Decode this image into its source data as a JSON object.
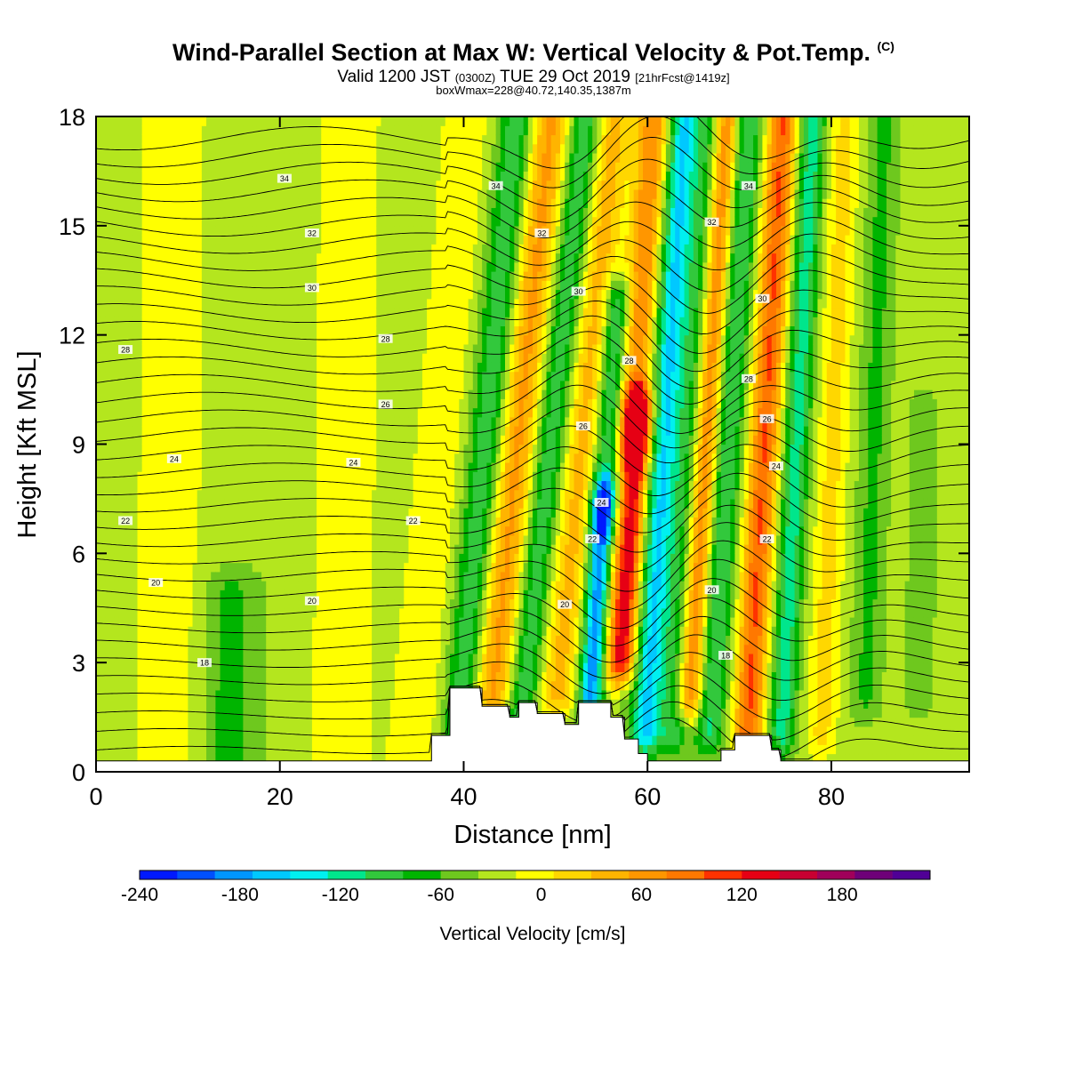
{
  "header": {
    "title_main": "Wind-Parallel Section at Max W: Vertical Velocity & Pot.Temp.",
    "title_suffix": "(C)",
    "valid_prefix": "Valid 1200 JST",
    "valid_utc": "(0300Z)",
    "valid_date": "TUE 29 Oct 2019",
    "valid_fcst": "[21hrFcst@1419z]",
    "boxwmax": "boxWmax=228@40.72,140.35,1387m"
  },
  "chart_data": {
    "type": "heatmap",
    "title": "Wind-Parallel Section at Max W: Vertical Velocity & Pot.Temp.",
    "xlabel": "Distance [nm]",
    "ylabel": "Height [Kft MSL]",
    "xlim": [
      0,
      95
    ],
    "ylim": [
      0,
      18
    ],
    "xticks": [
      0,
      20,
      40,
      60,
      80
    ],
    "yticks": [
      0,
      3,
      6,
      9,
      12,
      15,
      18
    ],
    "colorbar": {
      "label": "Vertical Velocity [cm/s]",
      "ticks": [
        -240,
        -180,
        -120,
        -60,
        0,
        60,
        120,
        180
      ],
      "levels": [
        -240,
        -210,
        -180,
        -150,
        -120,
        -90,
        -60,
        -30,
        0,
        30,
        60,
        90,
        120,
        150,
        180,
        210
      ],
      "colors": [
        "#0019ff",
        "#0050ff",
        "#0096ff",
        "#00c8ff",
        "#00f0f0",
        "#00e68c",
        "#32c83c",
        "#00b400",
        "#6ec81e",
        "#b4e61e",
        "#ffff00",
        "#ffd700",
        "#ffb400",
        "#ff9600",
        "#ff7800",
        "#ff3200",
        "#e60014",
        "#c80032",
        "#a0005a",
        "#6e0078",
        "#500096"
      ]
    },
    "velocity_features": [
      {
        "x": 37,
        "w": 2.5,
        "amp": 45,
        "y0": 0,
        "y1": 18,
        "lean": 1.3
      },
      {
        "x": 42,
        "w": 1.8,
        "amp": -95,
        "y0": 0.5,
        "y1": 18,
        "lean": 1.5
      },
      {
        "x": 45.5,
        "w": 2.0,
        "amp": 115,
        "y0": 2,
        "y1": 18,
        "lean": 1.6
      },
      {
        "x": 49,
        "w": 1.6,
        "amp": -95,
        "y0": 0.5,
        "y1": 18,
        "lean": 1.7
      },
      {
        "x": 52.5,
        "w": 1.8,
        "amp": 90,
        "y0": 2,
        "y1": 18,
        "lean": 1.6
      },
      {
        "x": 55.3,
        "w": 1.2,
        "amp": -215,
        "y0": 2,
        "y1": 7.5,
        "lean": 1.0
      },
      {
        "x": 55.5,
        "w": 1.4,
        "amp": -120,
        "y0": 7,
        "y1": 13,
        "lean": 1.0
      },
      {
        "x": 58.5,
        "w": 1.6,
        "amp": 228,
        "y0": 3,
        "y1": 10,
        "lean": 1.1
      },
      {
        "x": 58,
        "w": 1.8,
        "amp": 140,
        "y0": 9,
        "y1": 18,
        "lean": 1.1
      },
      {
        "x": 61.5,
        "w": 1.7,
        "amp": -170,
        "y0": 1,
        "y1": 18,
        "lean": 1.0
      },
      {
        "x": 64.5,
        "w": 1.6,
        "amp": -90,
        "y0": 1,
        "y1": 18,
        "lean": 1.0
      },
      {
        "x": 66,
        "w": 1.5,
        "amp": 160,
        "y0": 2,
        "y1": 18,
        "lean": 1.0
      },
      {
        "x": 68.5,
        "w": 1.5,
        "amp": -110,
        "y0": 1,
        "y1": 18,
        "lean": 1.0
      },
      {
        "x": 72.5,
        "w": 1.6,
        "amp": 170,
        "y0": 1,
        "y1": 18,
        "lean": 0.9
      },
      {
        "x": 76,
        "w": 1.4,
        "amp": -120,
        "y0": 1,
        "y1": 18,
        "lean": 0.8
      },
      {
        "x": 80,
        "w": 1.6,
        "amp": 60,
        "y0": 1,
        "y1": 18,
        "lean": 0.6
      },
      {
        "x": 84.5,
        "w": 1.6,
        "amp": -50,
        "y0": 2,
        "y1": 18,
        "lean": 0.5
      },
      {
        "x": 90,
        "w": 1.6,
        "amp": -30,
        "y0": 2,
        "y1": 10,
        "lean": 0.3
      },
      {
        "x": 14.5,
        "w": 2.8,
        "amp": -55,
        "y0": 0,
        "y1": 5,
        "lean": 0.1
      },
      {
        "x": 8,
        "w": 4,
        "amp": 35,
        "y0": 0,
        "y1": 18,
        "lean": 0.2
      },
      {
        "x": 27,
        "w": 4,
        "amp": 35,
        "y0": 0,
        "y1": 18,
        "lean": 0.2
      },
      {
        "x": 20,
        "w": 3,
        "amp": -8,
        "y0": 0,
        "y1": 18,
        "lean": 0.2
      }
    ],
    "terrain": [
      [
        0,
        0.3
      ],
      [
        36.5,
        0.3
      ],
      [
        36.5,
        1.0
      ],
      [
        38.5,
        1.0
      ],
      [
        38.5,
        2.3
      ],
      [
        42,
        2.3
      ],
      [
        42,
        1.8
      ],
      [
        45,
        1.8
      ],
      [
        45,
        1.5
      ],
      [
        46,
        1.5
      ],
      [
        46,
        1.9
      ],
      [
        48,
        1.9
      ],
      [
        48,
        1.6
      ],
      [
        51,
        1.6
      ],
      [
        51,
        1.3
      ],
      [
        52.5,
        1.3
      ],
      [
        52.5,
        1.9
      ],
      [
        56,
        1.9
      ],
      [
        56,
        1.5
      ],
      [
        57.5,
        1.5
      ],
      [
        57.5,
        0.9
      ],
      [
        59,
        0.9
      ],
      [
        59,
        0.5
      ],
      [
        60,
        0.5
      ],
      [
        60,
        0.3
      ],
      [
        68,
        0.3
      ],
      [
        68,
        0.6
      ],
      [
        69.5,
        0.6
      ],
      [
        69.5,
        1.0
      ],
      [
        73.5,
        1.0
      ],
      [
        73.5,
        0.6
      ],
      [
        74.5,
        0.6
      ],
      [
        74.5,
        0.3
      ],
      [
        95,
        0.3
      ]
    ],
    "isentrope_labels": [
      {
        "x": 20.5,
        "y": 16.3,
        "text": "34"
      },
      {
        "x": 23.5,
        "y": 14.8,
        "text": "32"
      },
      {
        "x": 23.5,
        "y": 13.3,
        "text": "30"
      },
      {
        "x": 3.2,
        "y": 11.6,
        "text": "28"
      },
      {
        "x": 31.5,
        "y": 11.9,
        "text": "28"
      },
      {
        "x": 31.5,
        "y": 10.1,
        "text": "26"
      },
      {
        "x": 8.5,
        "y": 8.6,
        "text": "24"
      },
      {
        "x": 28,
        "y": 8.5,
        "text": "24"
      },
      {
        "x": 3.2,
        "y": 6.9,
        "text": "22"
      },
      {
        "x": 34.5,
        "y": 6.9,
        "text": "22"
      },
      {
        "x": 6.5,
        "y": 5.2,
        "text": "20"
      },
      {
        "x": 23.5,
        "y": 4.7,
        "text": "20"
      },
      {
        "x": 11.8,
        "y": 3.0,
        "text": "18"
      },
      {
        "x": 43.5,
        "y": 16.1,
        "text": "34"
      },
      {
        "x": 48.5,
        "y": 14.8,
        "text": "32"
      },
      {
        "x": 52.5,
        "y": 13.2,
        "text": "30"
      },
      {
        "x": 58,
        "y": 11.3,
        "text": "28"
      },
      {
        "x": 53,
        "y": 9.5,
        "text": "26"
      },
      {
        "x": 55,
        "y": 7.4,
        "text": "24"
      },
      {
        "x": 54,
        "y": 6.4,
        "text": "22"
      },
      {
        "x": 51,
        "y": 4.6,
        "text": "20"
      },
      {
        "x": 67,
        "y": 15.1,
        "text": "32"
      },
      {
        "x": 71,
        "y": 16.1,
        "text": "34"
      },
      {
        "x": 72.5,
        "y": 13.0,
        "text": "30"
      },
      {
        "x": 71,
        "y": 10.8,
        "text": "28"
      },
      {
        "x": 73,
        "y": 9.7,
        "text": "26"
      },
      {
        "x": 74,
        "y": 8.4,
        "text": "24"
      },
      {
        "x": 73,
        "y": 6.4,
        "text": "22"
      },
      {
        "x": 67,
        "y": 5.0,
        "text": "20"
      },
      {
        "x": 68.5,
        "y": 3.2,
        "text": "18"
      }
    ]
  }
}
